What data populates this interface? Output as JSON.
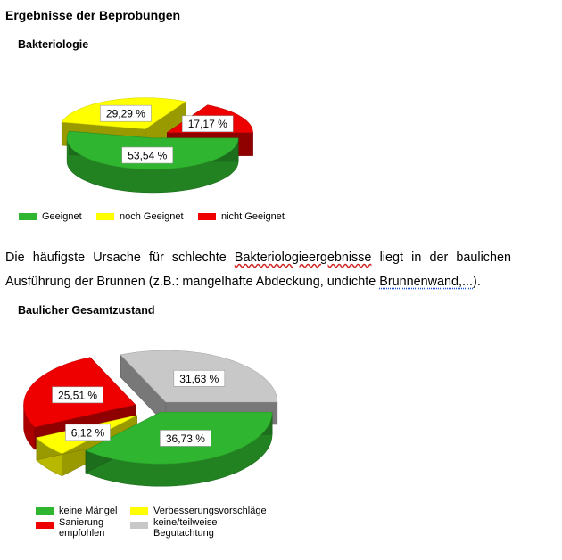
{
  "page": {
    "heading": "Ergebnisse der Beprobungen"
  },
  "charts_meta": [
    {
      "title": "Bakteriologie"
    },
    {
      "title": "Baulicher Gesamtzustand"
    }
  ],
  "paragraph": {
    "line1_pre": "Die häufigste Ursache für schlechte ",
    "line1_mark": "Bakteriologieergebnisse",
    "line1_post": " liegt in der baulichen",
    "line2_pre": "Ausführung der Brunnen (z.B.: mangelhafte Abdeckung, undichte ",
    "line2_link": "Brunnenwand,...",
    "line2_post": ")."
  },
  "chart_data": [
    {
      "type": "pie",
      "title": "Bakteriologie",
      "categories": [
        "Geeignet",
        "noch Geeignet",
        "nicht Geeignet"
      ],
      "values": [
        53.54,
        29.29,
        17.17
      ],
      "labels": [
        "53,54 %",
        "29,29 %",
        "17,17 %"
      ],
      "colors": [
        "#2fb52f",
        "#ffff00",
        "#ee0000"
      ],
      "legend_position": "bottom"
    },
    {
      "type": "pie",
      "title": "Baulicher Gesamtzustand",
      "categories": [
        "keine Mängel",
        "Verbesserungsvorschläge",
        "Sanierung empfohlen",
        "keine/teilweise Begutachtung"
      ],
      "values": [
        36.73,
        6.12,
        25.51,
        31.63
      ],
      "labels": [
        "36,73 %",
        "6,12 %",
        "25,51 %",
        "31,63 %"
      ],
      "colors": [
        "#2fb52f",
        "#ffff00",
        "#ee0000",
        "#c8c8c8"
      ],
      "legend_position": "bottom"
    }
  ],
  "legend1": [
    "Geeignet",
    "noch Geeignet",
    "nicht Geeignet"
  ],
  "legend2": {
    "item1": "keine Mängel",
    "item2": "Verbesserungsvorschläge",
    "item3_line1": "Sanierung",
    "item3_line2": "empfohlen",
    "item4_line1": "keine/teilweise",
    "item4_line2": "Begutachtung"
  }
}
